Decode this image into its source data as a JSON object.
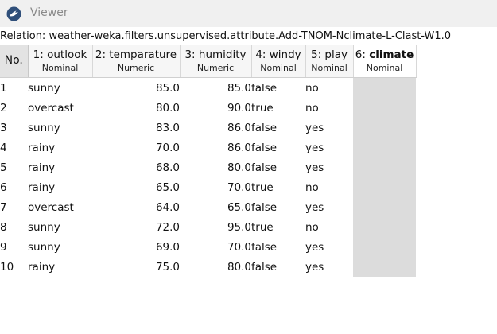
{
  "window": {
    "title": "Viewer",
    "icon": "weka-bird-icon"
  },
  "relation": {
    "label": "Relation:",
    "name": "weather-weka.filters.unsupervised.attribute.Add-TNOM-Nclimate-L-Clast-W1.0"
  },
  "table": {
    "no_header": "No.",
    "columns": [
      {
        "name": "1: outlook",
        "type": "Nominal"
      },
      {
        "name": "2: temparature",
        "type": "Numeric"
      },
      {
        "name": "3: humidity",
        "type": "Numeric"
      },
      {
        "name": "4: windy",
        "type": "Nominal"
      },
      {
        "name": "5: play",
        "type": "Nominal"
      },
      {
        "prefix": "6:",
        "name": "climate",
        "type": "Nominal"
      }
    ],
    "rows": [
      [
        "1",
        "sunny",
        "85.0",
        "85.0",
        "false",
        "no",
        ""
      ],
      [
        "2",
        "overcast",
        "80.0",
        "90.0",
        "true",
        "no",
        ""
      ],
      [
        "3",
        "sunny",
        "83.0",
        "86.0",
        "false",
        "yes",
        ""
      ],
      [
        "4",
        "rainy",
        "70.0",
        "86.0",
        "false",
        "yes",
        ""
      ],
      [
        "5",
        "rainy",
        "68.0",
        "80.0",
        "false",
        "yes",
        ""
      ],
      [
        "6",
        "rainy",
        "65.0",
        "70.0",
        "true",
        "no",
        ""
      ],
      [
        "7",
        "overcast",
        "64.0",
        "65.0",
        "false",
        "yes",
        ""
      ],
      [
        "8",
        "sunny",
        "72.0",
        "95.0",
        "true",
        "no",
        ""
      ],
      [
        "9",
        "sunny",
        "69.0",
        "70.0",
        "false",
        "yes",
        ""
      ],
      [
        "10",
        "rainy",
        "75.0",
        "80.0",
        "false",
        "yes",
        ""
      ]
    ]
  },
  "colors": {
    "selected_column": "#dcdcdc",
    "header_bg": "#f6f6f6",
    "titlebar_bg": "#f0f0f0"
  }
}
